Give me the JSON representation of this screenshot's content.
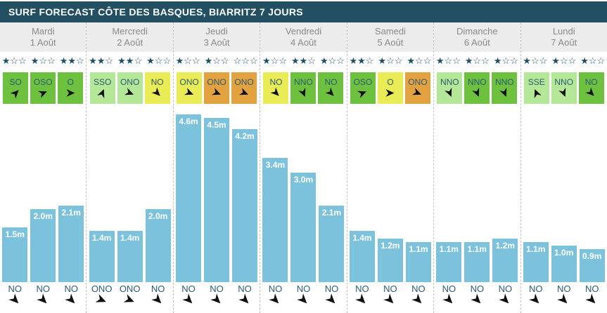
{
  "header": {
    "title": "SURF FORECAST CÔTE DES BASQUES, BIARRITZ 7 JOURS"
  },
  "colors": {
    "header_bg": "#234f63",
    "bar_blue": "#7cc2dd",
    "star_navy": "#1e4e66",
    "wind_levels": {
      "green": "#6dc13e",
      "light_green": "#b5e798",
      "yellow": "#e9ec55",
      "orange": "#e2a23f"
    },
    "arrow_black": "#111111"
  },
  "icons": {
    "star_filled": "★",
    "star_empty": "☆"
  },
  "days": [
    {
      "name": "Mardi",
      "date": "1 Août",
      "stars": [
        1,
        1,
        2
      ],
      "wind": [
        {
          "dir": "SO",
          "color": "green",
          "deg": 315
        },
        {
          "dir": "OSO",
          "color": "green",
          "deg": 337.5
        },
        {
          "dir": "O",
          "color": "green",
          "deg": 0
        }
      ],
      "waves": [
        {
          "label": "1.5m",
          "m": 1.5
        },
        {
          "label": "2.0m",
          "m": 2.0
        },
        {
          "label": "2.1m",
          "m": 2.1
        }
      ],
      "swell": [
        {
          "dir": "NO",
          "deg": 45
        },
        {
          "dir": "NO",
          "deg": 45
        },
        {
          "dir": "NO",
          "deg": 45
        }
      ]
    },
    {
      "name": "Mercredi",
      "date": "2 Août",
      "stars": [
        2,
        2,
        1
      ],
      "wind": [
        {
          "dir": "SSO",
          "color": "light_green",
          "deg": 292.5
        },
        {
          "dir": "ONO",
          "color": "light_green",
          "deg": 22.5
        },
        {
          "dir": "NO",
          "color": "yellow",
          "deg": 45
        }
      ],
      "waves": [
        {
          "label": "1.4m",
          "m": 1.4
        },
        {
          "label": "1.4m",
          "m": 1.4
        },
        {
          "label": "2.0m",
          "m": 2.0
        }
      ],
      "swell": [
        {
          "dir": "ONO",
          "deg": 22.5
        },
        {
          "dir": "ONO",
          "deg": 22.5
        },
        {
          "dir": "NO",
          "deg": 45
        }
      ]
    },
    {
      "name": "Jeudi",
      "date": "3 Août",
      "stars": [
        1,
        1,
        0
      ],
      "wind": [
        {
          "dir": "ONO",
          "color": "yellow",
          "deg": 22.5
        },
        {
          "dir": "ONO",
          "color": "orange",
          "deg": 22.5
        },
        {
          "dir": "ONO",
          "color": "orange",
          "deg": 22.5
        }
      ],
      "waves": [
        {
          "label": "4.6m",
          "m": 4.6
        },
        {
          "label": "4.5m",
          "m": 4.5
        },
        {
          "label": "4.2m",
          "m": 4.2
        }
      ],
      "swell": [
        {
          "dir": "NO",
          "deg": 45
        },
        {
          "dir": "NO",
          "deg": 45
        },
        {
          "dir": "NO",
          "deg": 45
        }
      ]
    },
    {
      "name": "Vendredi",
      "date": "4 Août",
      "stars": [
        1,
        2,
        1
      ],
      "wind": [
        {
          "dir": "NO",
          "color": "yellow",
          "deg": 45
        },
        {
          "dir": "NNO",
          "color": "green",
          "deg": 67.5
        },
        {
          "dir": "NO",
          "color": "green",
          "deg": 45
        }
      ],
      "waves": [
        {
          "label": "3.4m",
          "m": 3.4
        },
        {
          "label": "3.0m",
          "m": 3.0
        },
        {
          "label": "2.1m",
          "m": 2.1
        }
      ],
      "swell": [
        {
          "dir": "NO",
          "deg": 45
        },
        {
          "dir": "NO",
          "deg": 45
        },
        {
          "dir": "NO",
          "deg": 45
        }
      ]
    },
    {
      "name": "Samedi",
      "date": "5 Août",
      "stars": [
        2,
        1,
        1
      ],
      "wind": [
        {
          "dir": "OSO",
          "color": "green",
          "deg": 337.5
        },
        {
          "dir": "O",
          "color": "yellow",
          "deg": 0
        },
        {
          "dir": "ONO",
          "color": "orange",
          "deg": 22.5
        }
      ],
      "waves": [
        {
          "label": "1.4m",
          "m": 1.4
        },
        {
          "label": "1.2m",
          "m": 1.2
        },
        {
          "label": "1.1m",
          "m": 1.1
        }
      ],
      "swell": [
        {
          "dir": "NO",
          "deg": 45
        },
        {
          "dir": "NO",
          "deg": 45
        },
        {
          "dir": "NO",
          "deg": 45
        }
      ]
    },
    {
      "name": "Dimanche",
      "date": "6 Août",
      "stars": [
        1,
        1,
        1
      ],
      "wind": [
        {
          "dir": "NNO",
          "color": "light_green",
          "deg": 67.5
        },
        {
          "dir": "NNO",
          "color": "green",
          "deg": 67.5
        },
        {
          "dir": "NNO",
          "color": "green",
          "deg": 67.5
        }
      ],
      "waves": [
        {
          "label": "1.1m",
          "m": 1.1
        },
        {
          "label": "1.1m",
          "m": 1.1
        },
        {
          "label": "1.2m",
          "m": 1.2
        }
      ],
      "swell": [
        {
          "dir": "NO",
          "deg": 45
        },
        {
          "dir": "NO",
          "deg": 45
        },
        {
          "dir": "NO",
          "deg": 45
        }
      ]
    },
    {
      "name": "Lundi",
      "date": "7 Août",
      "stars": [
        1,
        1,
        1
      ],
      "wind": [
        {
          "dir": "SSE",
          "color": "light_green",
          "deg": 247.5
        },
        {
          "dir": "NNO",
          "color": "light_green",
          "deg": 67.5
        },
        {
          "dir": "NO",
          "color": "green",
          "deg": 45
        }
      ],
      "waves": [
        {
          "label": "1.1m",
          "m": 1.1
        },
        {
          "label": "1.0m",
          "m": 1.0
        },
        {
          "label": "0.9m",
          "m": 0.9
        }
      ],
      "swell": [
        {
          "dir": "NO",
          "deg": 45
        },
        {
          "dir": "NO",
          "deg": 45
        },
        {
          "dir": "NO",
          "deg": 45
        }
      ]
    }
  ],
  "chart_data": {
    "type": "bar",
    "title": "SURF FORECAST CÔTE DES BASQUES, BIARRITZ 7 JOURS",
    "unit": "m",
    "ylim": [
      0,
      4.6
    ],
    "grid": false,
    "legend_position": "none",
    "categories": [
      "Mardi 1 Août",
      "Mercredi 2 Août",
      "Jeudi 3 Août",
      "Vendredi 4 Août",
      "Samedi 5 Août",
      "Dimanche 6 Août",
      "Lundi 7 Août"
    ],
    "series": [
      {
        "name": "wave-height-slot-1",
        "values": [
          1.5,
          1.4,
          4.6,
          3.4,
          1.4,
          1.1,
          1.1
        ]
      },
      {
        "name": "wave-height-slot-2",
        "values": [
          2.0,
          1.4,
          4.5,
          3.0,
          1.2,
          1.1,
          1.0
        ]
      },
      {
        "name": "wave-height-slot-3",
        "values": [
          2.1,
          2.0,
          4.2,
          2.1,
          1.1,
          1.2,
          0.9
        ]
      }
    ],
    "bar_color": "#7cc2dd",
    "bar_labels_visible": true
  }
}
